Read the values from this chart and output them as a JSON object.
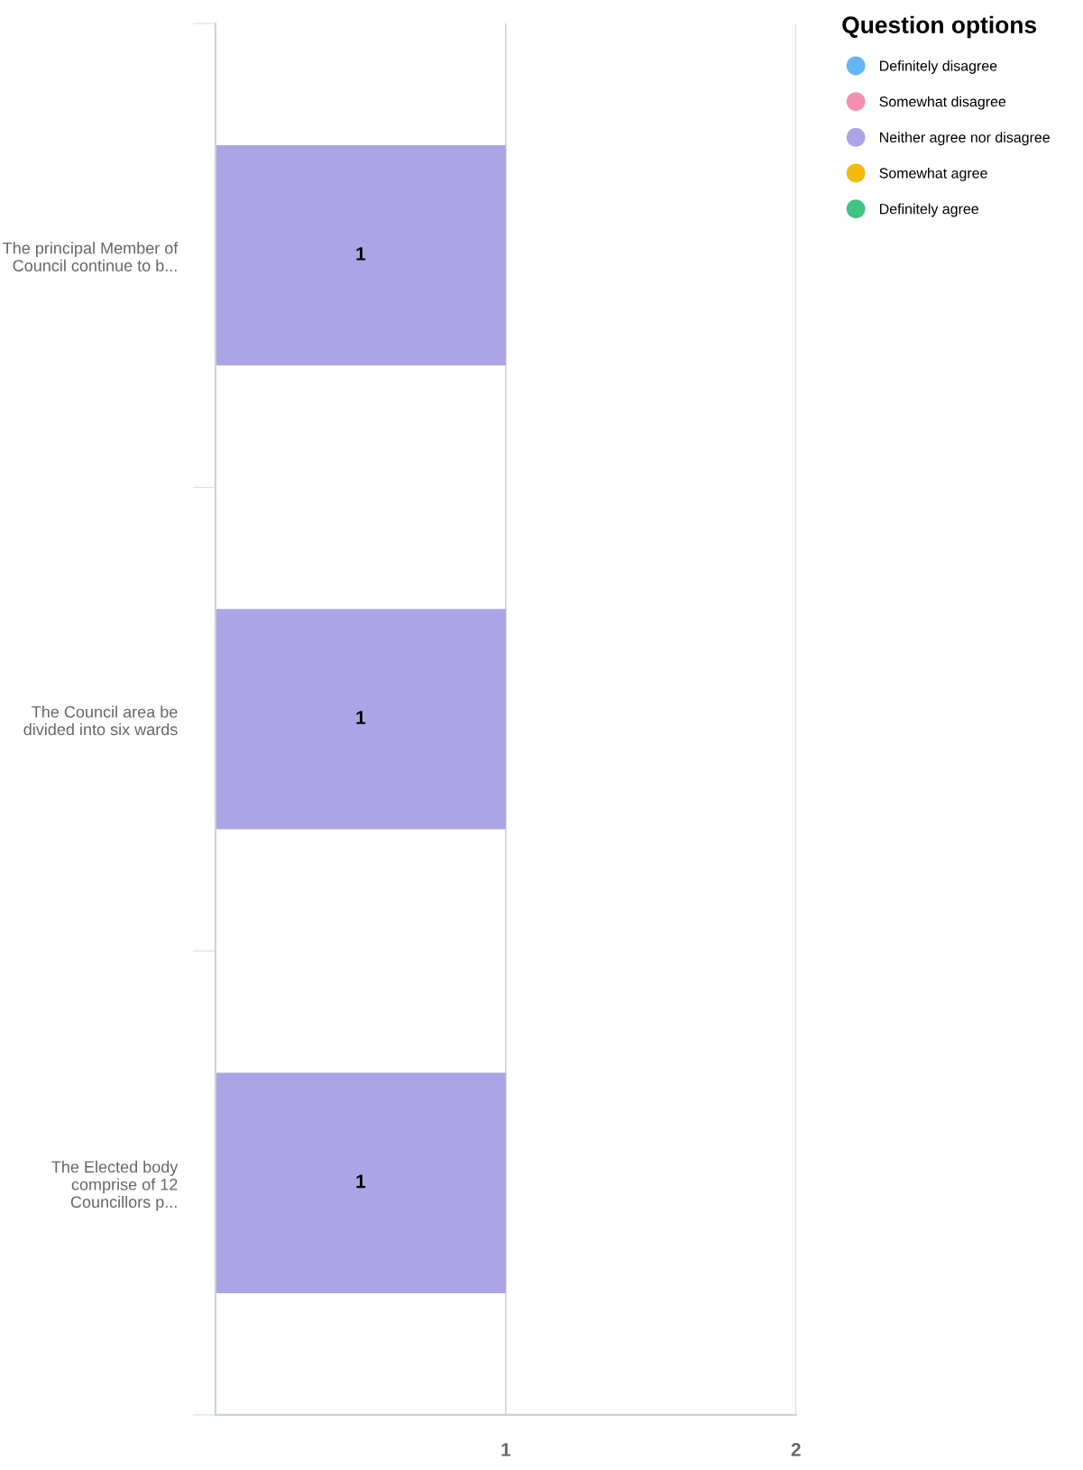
{
  "chart_data": {
    "type": "bar",
    "orientation": "horizontal",
    "legend_title": "Question options",
    "legend": "top right",
    "grid": "x",
    "data_labels": true,
    "categories": [
      "The principal Member of Council continue to b...",
      "The Council area be divided into six wards",
      "The Elected body comprise of 12 Councillors p..."
    ],
    "series": [
      {
        "name": "Definitely disagree",
        "color": "#64b5f6",
        "values": [
          null,
          null,
          null
        ]
      },
      {
        "name": "Somewhat disagree",
        "color": "#f48fb1",
        "values": [
          null,
          null,
          null
        ]
      },
      {
        "name": "Neither agree nor disagree",
        "color": "#ada4e6",
        "values": [
          1,
          1,
          1
        ]
      },
      {
        "name": "Somewhat agree",
        "color": "#f5b90f",
        "values": [
          null,
          null,
          null
        ]
      },
      {
        "name": "Definitely agree",
        "color": "#40c47e",
        "values": [
          null,
          null,
          null
        ]
      }
    ],
    "xlim": [
      0,
      2
    ],
    "xticks": [
      {
        "value": 0,
        "label": null
      },
      1,
      2
    ]
  }
}
